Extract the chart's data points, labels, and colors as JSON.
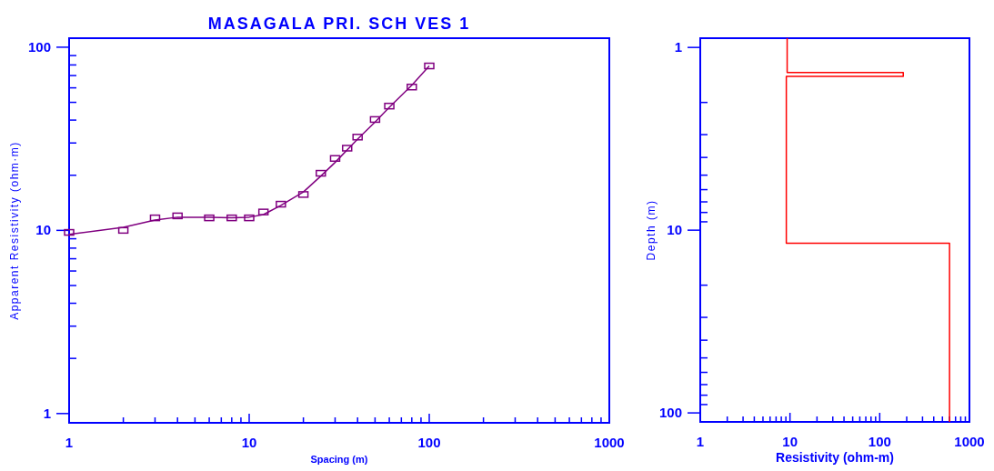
{
  "chart_data": [
    {
      "type": "line",
      "title": "MASAGALA PRI. SCH VES 1",
      "xlabel": "Spacing (m)",
      "ylabel": "Apparent Resistivity (ohm·m)",
      "log": "xy",
      "grid": false,
      "xlim": [
        1,
        1000
      ],
      "ylim": [
        0.89,
        112
      ],
      "xticks": [
        1,
        {
          "value": 2,
          "label": null
        },
        {
          "value": 3,
          "label": null
        },
        {
          "value": 4,
          "label": null
        },
        {
          "value": 5,
          "label": null
        },
        {
          "value": 6,
          "label": null
        },
        {
          "value": 7,
          "label": null
        },
        {
          "value": 8,
          "label": null
        },
        {
          "value": 9,
          "label": null
        },
        10,
        {
          "value": 20,
          "label": null
        },
        {
          "value": 30,
          "label": null
        },
        {
          "value": 40,
          "label": null
        },
        {
          "value": 50,
          "label": null
        },
        {
          "value": 60,
          "label": null
        },
        {
          "value": 70,
          "label": null
        },
        {
          "value": 80,
          "label": null
        },
        {
          "value": 90,
          "label": null
        },
        100,
        {
          "value": 200,
          "label": null
        },
        {
          "value": 300,
          "label": null
        },
        {
          "value": 400,
          "label": null
        },
        {
          "value": 500,
          "label": null
        },
        {
          "value": 600,
          "label": null
        },
        {
          "value": 700,
          "label": null
        },
        {
          "value": 800,
          "label": null
        },
        {
          "value": 900,
          "label": null
        },
        1000
      ],
      "yticks": [
        1,
        {
          "value": 2,
          "label": null
        },
        {
          "value": 3,
          "label": null
        },
        {
          "value": 4,
          "label": null
        },
        {
          "value": 5,
          "label": null
        },
        {
          "value": 6,
          "label": null
        },
        {
          "value": 7,
          "label": null
        },
        {
          "value": 8,
          "label": null
        },
        {
          "value": 9,
          "label": null
        },
        10,
        {
          "value": 20,
          "label": null
        },
        {
          "value": 30,
          "label": null
        },
        {
          "value": 40,
          "label": null
        },
        {
          "value": 50,
          "label": null
        },
        {
          "value": 60,
          "label": null
        },
        {
          "value": 70,
          "label": null
        },
        {
          "value": 80,
          "label": null
        },
        {
          "value": 90,
          "label": null
        },
        100
      ],
      "series": [
        {
          "color": "#800080",
          "marker": "none",
          "x": [
            1,
            2,
            3,
            4,
            6,
            8,
            10,
            12,
            15,
            20,
            25,
            30,
            40,
            50,
            60,
            80,
            100
          ],
          "values": [
            9.5,
            10.4,
            11.4,
            11.8,
            11.8,
            11.7,
            11.8,
            12.2,
            13.7,
            16.2,
            19.8,
            23.5,
            31.5,
            39,
            47,
            62,
            79
          ]
        },
        {
          "type": "scatter",
          "color": "#800080",
          "marker": "square",
          "x": [
            1,
            2,
            3,
            4,
            6,
            8,
            10,
            12,
            15,
            20,
            25,
            30,
            35,
            40,
            50,
            60,
            80,
            100
          ],
          "values": [
            9.75,
            10,
            11.7,
            12,
            11.7,
            11.7,
            11.7,
            12.6,
            13.9,
            15.7,
            20.5,
            24.7,
            28.1,
            32.3,
            40.3,
            47.7,
            60.6,
            79
          ]
        }
      ]
    },
    {
      "type": "line",
      "xlabel": "Resistivity (ohm-m)",
      "ylabel": "Depth (m)",
      "log": "xy",
      "grid": false,
      "xlim": [
        1,
        1000
      ],
      "ylim": [
        112,
        0.89
      ],
      "xticks": [
        1,
        {
          "value": 2,
          "label": null
        },
        {
          "value": 3,
          "label": null
        },
        {
          "value": 4,
          "label": null
        },
        {
          "value": 5,
          "label": null
        },
        {
          "value": 6,
          "label": null
        },
        {
          "value": 7,
          "label": null
        },
        {
          "value": 8,
          "label": null
        },
        {
          "value": 9,
          "label": null
        },
        10,
        {
          "value": 20,
          "label": null
        },
        {
          "value": 30,
          "label": null
        },
        {
          "value": 40,
          "label": null
        },
        {
          "value": 50,
          "label": null
        },
        {
          "value": 60,
          "label": null
        },
        {
          "value": 70,
          "label": null
        },
        {
          "value": 80,
          "label": null
        },
        {
          "value": 90,
          "label": null
        },
        100,
        {
          "value": 200,
          "label": null
        },
        {
          "value": 300,
          "label": null
        },
        {
          "value": 400,
          "label": null
        },
        {
          "value": 500,
          "label": null
        },
        {
          "value": 600,
          "label": null
        },
        {
          "value": 700,
          "label": null
        },
        {
          "value": 800,
          "label": null
        },
        {
          "value": 900,
          "label": null
        },
        1000
      ],
      "yticks": [
        1,
        {
          "value": 2,
          "label": null
        },
        {
          "value": 3,
          "label": null
        },
        {
          "value": 4,
          "label": null
        },
        {
          "value": 5,
          "label": null
        },
        {
          "value": 6,
          "label": null
        },
        {
          "value": 7,
          "label": null
        },
        {
          "value": 8,
          "label": null
        },
        {
          "value": 9,
          "label": null
        },
        10,
        {
          "value": 20,
          "label": null
        },
        {
          "value": 30,
          "label": null
        },
        {
          "value": 40,
          "label": null
        },
        {
          "value": 50,
          "label": null
        },
        {
          "value": 60,
          "label": null
        },
        {
          "value": 70,
          "label": null
        },
        {
          "value": 80,
          "label": null
        },
        {
          "value": 90,
          "label": null
        },
        100
      ],
      "series": [
        {
          "color": "#ff0000",
          "marker": "none",
          "x": [
            9.3,
            9.3,
            183,
            183,
            9.1,
            9.1,
            600,
            600
          ],
          "values": [
            0.89,
            1.37,
            1.37,
            1.44,
            1.44,
            11.8,
            11.8,
            112
          ]
        }
      ]
    }
  ]
}
